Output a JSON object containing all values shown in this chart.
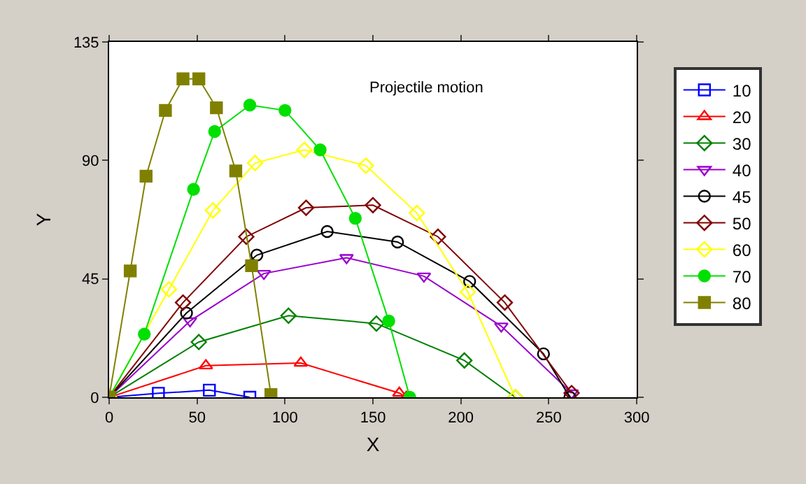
{
  "chart_data": {
    "type": "line",
    "title": "Projectile motion",
    "xlabel": "X",
    "ylabel": "Y",
    "xlim": [
      0,
      300
    ],
    "xticks": [
      0,
      50,
      100,
      150,
      200,
      250,
      300
    ],
    "ylim": [
      0,
      135
    ],
    "yticks": [
      0,
      45,
      90,
      135
    ],
    "legend": "right",
    "line_style": "solid",
    "series": [
      {
        "name": "10",
        "color": "#0000ff",
        "marker": "square",
        "x": [
          0,
          28,
          57,
          80
        ],
        "values": [
          0,
          1.5,
          2.7,
          0
        ]
      },
      {
        "name": "20",
        "color": "#ff0000",
        "marker": "triangle",
        "x": [
          0,
          55,
          109,
          165,
          169
        ],
        "values": [
          0,
          12,
          13,
          1.6,
          0
        ]
      },
      {
        "name": "30",
        "color": "#008000",
        "marker": "diamond",
        "x": [
          0,
          51,
          102,
          152,
          202,
          231
        ],
        "values": [
          0,
          21,
          31,
          28,
          14,
          0
        ]
      },
      {
        "name": "40",
        "color": "#9900cc",
        "marker": "triangle-down",
        "x": [
          0,
          46,
          88,
          135,
          179,
          223,
          263
        ],
        "values": [
          0,
          29,
          47,
          53,
          46,
          27,
          1.6
        ]
      },
      {
        "name": "45",
        "color": "#000000",
        "marker": "circle",
        "x": [
          0,
          44,
          84,
          124,
          164,
          205,
          247,
          262
        ],
        "values": [
          0,
          32,
          54,
          63,
          59,
          44,
          16.5,
          0
        ]
      },
      {
        "name": "50",
        "color": "#800000",
        "marker": "diamond",
        "x": [
          0,
          42,
          78,
          112,
          150,
          187,
          225,
          263
        ],
        "values": [
          0,
          36,
          61,
          72,
          73,
          61,
          36,
          1.6
        ]
      },
      {
        "name": "60",
        "color": "#ffff00",
        "marker": "diamond",
        "x": [
          0,
          34,
          59,
          83,
          111,
          146,
          175,
          204,
          231
        ],
        "values": [
          0,
          41,
          71,
          89,
          94,
          88,
          70,
          40,
          0
        ]
      },
      {
        "name": "70",
        "color": "#00e000",
        "marker": "circle-filled",
        "x": [
          0,
          20,
          48,
          60,
          80,
          100,
          120,
          140,
          159,
          171
        ],
        "values": [
          0,
          24,
          79,
          101,
          111,
          109,
          94,
          68,
          29,
          0
        ]
      },
      {
        "name": "80",
        "color": "#808000",
        "marker": "square-filled",
        "x": [
          0,
          12,
          21,
          32,
          42,
          51,
          61,
          72,
          81,
          92
        ],
        "values": [
          0,
          48,
          84,
          109,
          121,
          121,
          110,
          86,
          50,
          1
        ]
      }
    ]
  }
}
